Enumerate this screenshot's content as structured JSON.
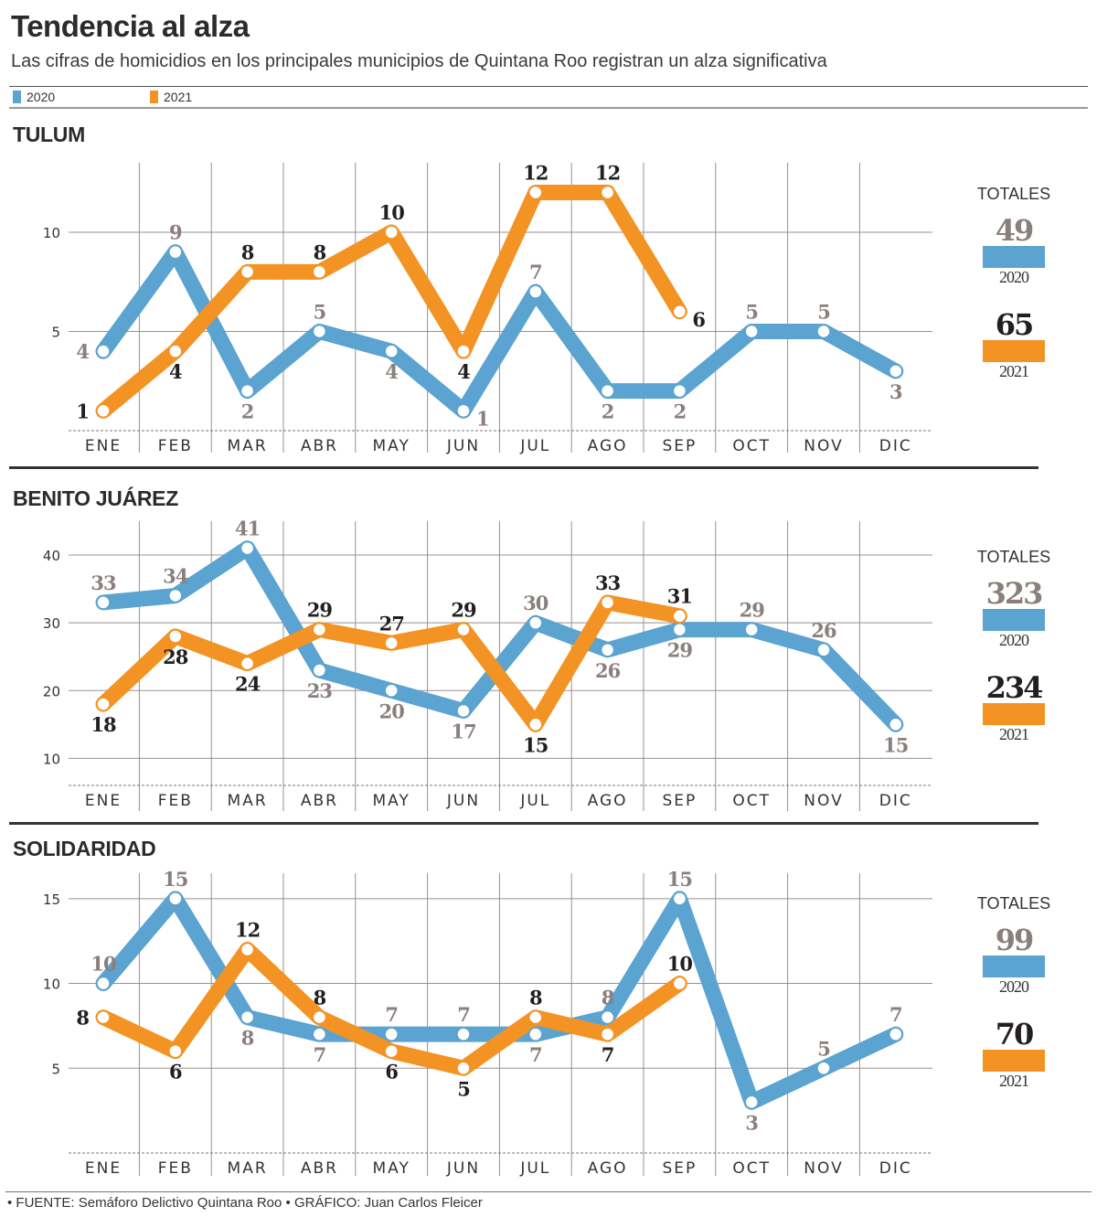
{
  "title": "Tendencia al alza",
  "subtitle": "Las cifras de homicidios en los principales municipios de Quintana Roo registran un alza significativa",
  "legend": [
    {
      "label": "2020",
      "color": "#5ba3d0"
    },
    {
      "label": "2021",
      "color": "#f39324"
    }
  ],
  "totals_label": "TOTALES",
  "footer": "• FUENTE: Semáforo Delictivo Quintana Roo • GRÁFICO: Juan Carlos Fleicer",
  "colors": {
    "s2020": "#5ba3d0",
    "s2021": "#f39324",
    "label2020": "#8a7f7c",
    "label2021": "#231f20",
    "grid": "#9a9090"
  },
  "chart_data": [
    {
      "type": "line",
      "title": "TULUM",
      "categories": [
        "ENE",
        "FEB",
        "MAR",
        "ABR",
        "MAY",
        "JUN",
        "JUL",
        "AGO",
        "SEP",
        "OCT",
        "NOV",
        "DIC"
      ],
      "yticks": [
        5,
        10
      ],
      "ylim": [
        0,
        13.5
      ],
      "grid": true,
      "series": [
        {
          "name": "2020",
          "values": [
            4,
            9,
            2,
            5,
            4,
            1,
            7,
            2,
            2,
            5,
            5,
            3
          ],
          "total": "49"
        },
        {
          "name": "2021",
          "values": [
            1,
            4,
            8,
            8,
            10,
            4,
            12,
            12,
            6
          ],
          "total": "65"
        }
      ]
    },
    {
      "type": "line",
      "title": "BENITO JUÁREZ",
      "categories": [
        "ENE",
        "FEB",
        "MAR",
        "ABR",
        "MAY",
        "JUN",
        "JUL",
        "AGO",
        "SEP",
        "OCT",
        "NOV",
        "DIC"
      ],
      "yticks": [
        10,
        20,
        30,
        40
      ],
      "ylim": [
        6,
        45
      ],
      "grid": true,
      "series": [
        {
          "name": "2020",
          "values": [
            33,
            34,
            41,
            23,
            20,
            17,
            30,
            26,
            29,
            29,
            26,
            15
          ],
          "total": "323"
        },
        {
          "name": "2021",
          "values": [
            18,
            28,
            24,
            29,
            27,
            29,
            15,
            33,
            31
          ],
          "total": "234"
        }
      ]
    },
    {
      "type": "line",
      "title": "SOLIDARIDAD",
      "categories": [
        "ENE",
        "FEB",
        "MAR",
        "ABR",
        "MAY",
        "JUN",
        "JUL",
        "AGO",
        "SEP",
        "OCT",
        "NOV",
        "DIC"
      ],
      "yticks": [
        5,
        10,
        15
      ],
      "ylim": [
        0,
        16.5
      ],
      "grid": true,
      "series": [
        {
          "name": "2020",
          "values": [
            10,
            15,
            8,
            7,
            7,
            7,
            7,
            8,
            15,
            3,
            5,
            7
          ],
          "total": "99"
        },
        {
          "name": "2021",
          "values": [
            8,
            6,
            12,
            8,
            6,
            5,
            8,
            7,
            10
          ],
          "total": "70"
        }
      ]
    }
  ]
}
